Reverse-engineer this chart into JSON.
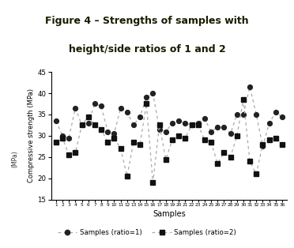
{
  "title_line1": "Figure 4 – Strengths of samples with",
  "title_line2": "height/side ratios of 1 and 2",
  "title_bg_color": "#F5C200",
  "xlabel": "Samples",
  "ylabel": "Compressive strength (MPa)",
  "ylabel2": "(MPa)",
  "ylim": [
    15,
    45
  ],
  "yticks": [
    15,
    20,
    25,
    30,
    35,
    40,
    45
  ],
  "samples": [
    1,
    2,
    3,
    4,
    5,
    6,
    7,
    8,
    9,
    10,
    11,
    12,
    13,
    14,
    15,
    16,
    17,
    18,
    19,
    20,
    21,
    22,
    23,
    24,
    25,
    26,
    27,
    28,
    29,
    30,
    31,
    32,
    33,
    34,
    35,
    36
  ],
  "ratio1": [
    33.5,
    30.0,
    29.5,
    36.5,
    32.5,
    33.0,
    37.5,
    37.0,
    31.0,
    30.5,
    36.5,
    35.5,
    32.5,
    34.5,
    39.0,
    40.0,
    31.5,
    31.0,
    33.0,
    33.5,
    33.0,
    32.5,
    33.0,
    34.0,
    31.0,
    32.0,
    32.0,
    30.5,
    35.0,
    35.0,
    41.5,
    35.0,
    27.5,
    33.0,
    35.5,
    34.5
  ],
  "ratio2": [
    28.5,
    29.5,
    25.5,
    26.0,
    32.5,
    34.5,
    32.5,
    31.5,
    28.5,
    29.5,
    27.0,
    20.5,
    28.5,
    28.0,
    37.5,
    19.0,
    32.5,
    24.5,
    29.0,
    30.0,
    29.5,
    32.5,
    32.5,
    29.0,
    28.5,
    23.5,
    26.0,
    25.0,
    30.0,
    38.5,
    24.0,
    21.0,
    28.0,
    29.0,
    29.5,
    28.0
  ],
  "line_color": "#aaaaaa",
  "marker_color_r1": "#222222",
  "marker_color_r2": "#111111",
  "legend_label_r1": "Samples (ratio=1)",
  "legend_label_r2": "Samples (ratio=2)",
  "bg_color": "#ffffff",
  "title_text_color": "#1a1a00"
}
